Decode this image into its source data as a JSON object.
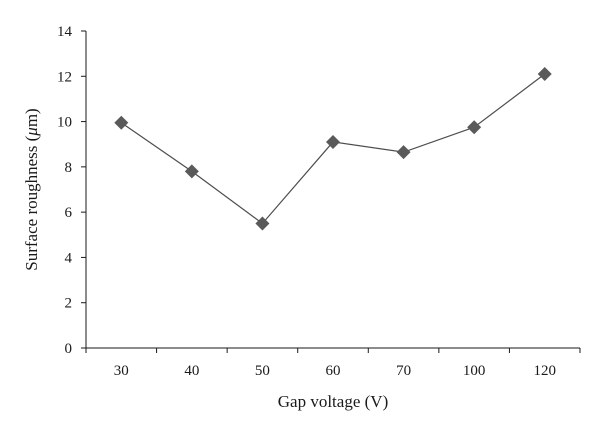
{
  "chart_data": {
    "type": "line",
    "title": "",
    "xlabel": "Gap voltage (V)",
    "ylabel_prefix": "Surface roughness (",
    "ylabel_unit_symbol": "μ",
    "ylabel_suffix": "m)",
    "categories": [
      "30",
      "40",
      "50",
      "60",
      "70",
      "100",
      "120"
    ],
    "series": [
      {
        "values": [
          9.95,
          7.8,
          5.5,
          9.1,
          8.65,
          9.75,
          12.1
        ]
      }
    ],
    "ylim": [
      0,
      14
    ],
    "yticks": [
      "0",
      "2",
      "4",
      "6",
      "8",
      "10",
      "12",
      "14"
    ],
    "grid": false,
    "legend": "none",
    "marker": "diamond",
    "series_color": "#4d4d4d",
    "marker_color": "#5a5a5a"
  }
}
